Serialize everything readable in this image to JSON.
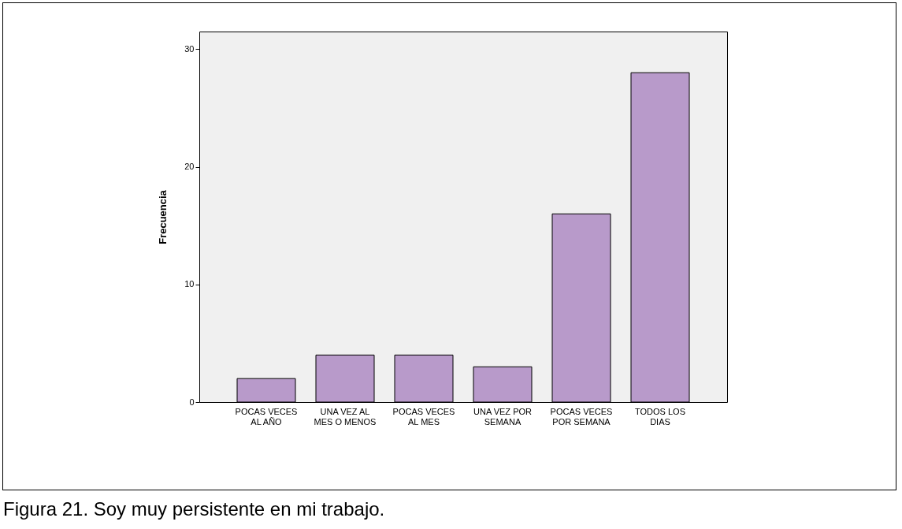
{
  "chart_data": {
    "type": "bar",
    "ylabel": "Frecuencia",
    "categories": [
      "POCAS VECES\nAL AÑO",
      "UNA VEZ AL\nMES O MENOS",
      "POCAS VECES\nAL MES",
      "UNA VEZ POR\nSEMANA",
      "POCAS VECES\nPOR SEMANA",
      "TODOS LOS\nDIAS"
    ],
    "values": [
      2,
      4,
      4,
      3,
      16,
      28
    ],
    "color": "#b89aca",
    "ylim": [
      0,
      31.5
    ],
    "yticks": [
      0,
      10,
      20,
      30
    ],
    "grid": false,
    "annotations": [
      "Figura 21. Soy muy persistente en mi trabajo."
    ]
  }
}
